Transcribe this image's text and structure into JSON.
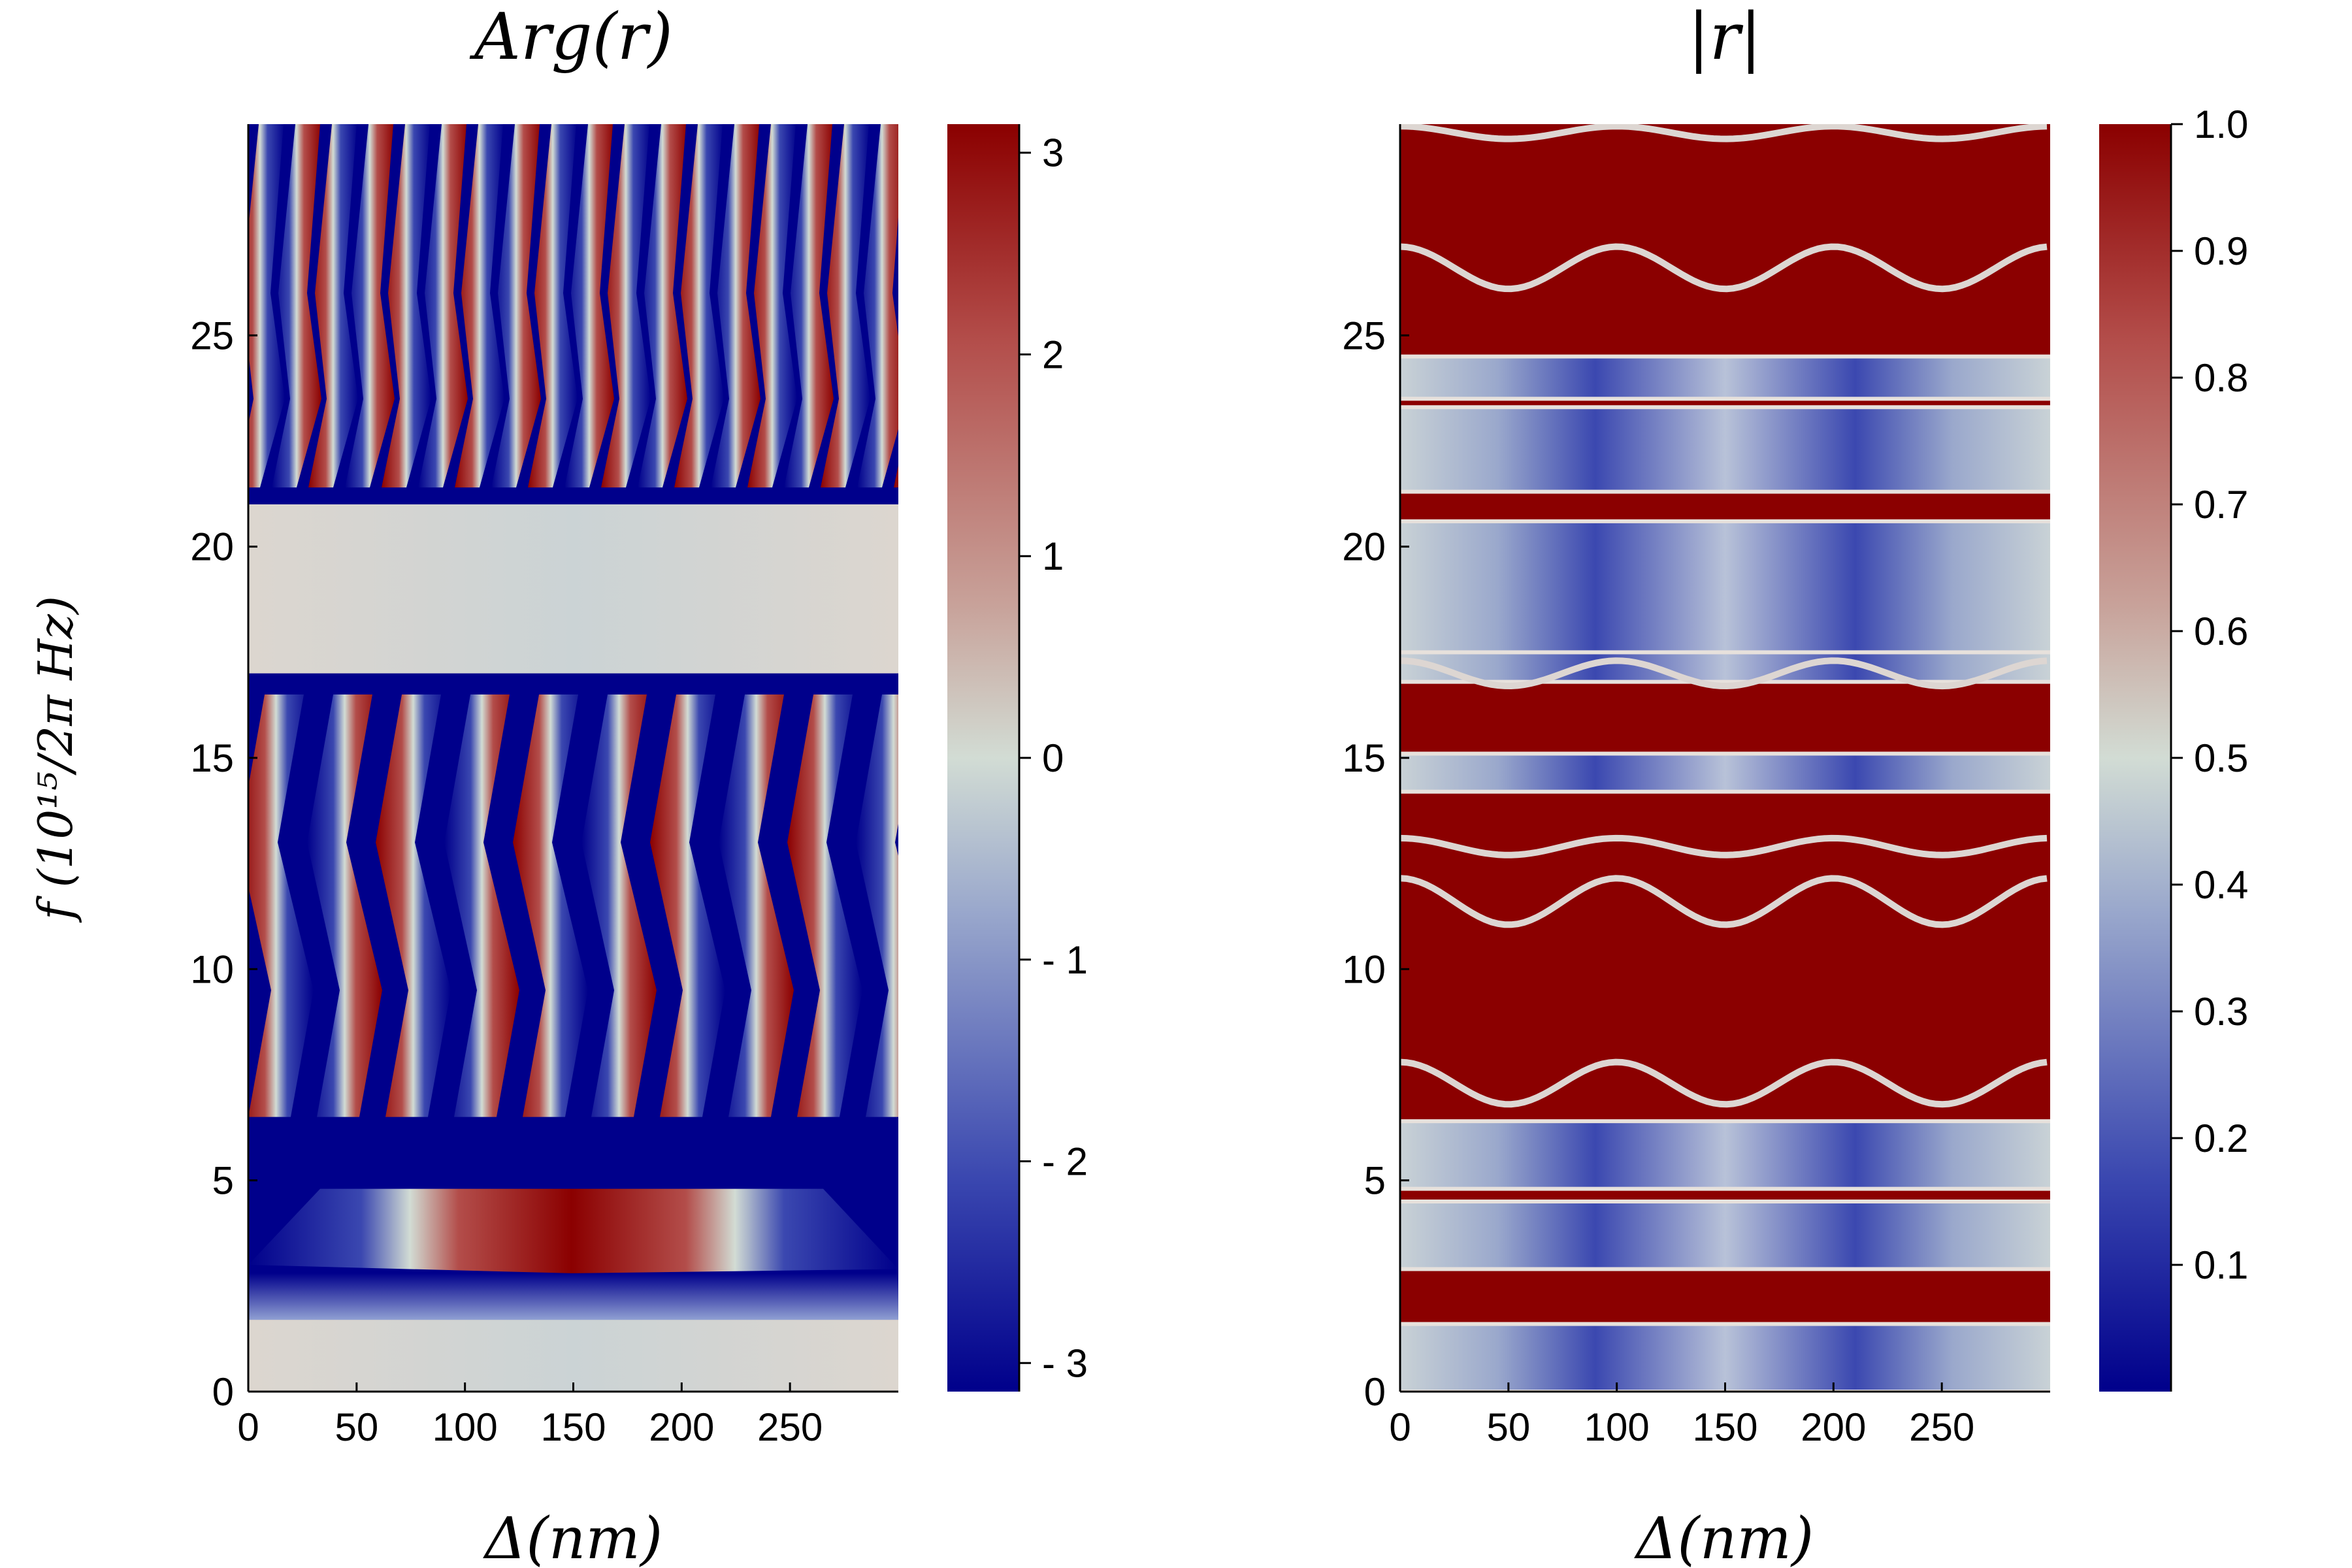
{
  "figure": {
    "ylabel": "f (10¹⁵/2π Hz)",
    "xlabel": "Δ(nm)"
  },
  "chart_data": [
    {
      "type": "heatmap",
      "title": "Arg(r)",
      "xlabel": "Δ(nm)",
      "ylabel": "f (10¹⁵/2π Hz)",
      "xlim": [
        0,
        300
      ],
      "ylim": [
        0,
        30
      ],
      "x_ticks": [
        0,
        50,
        100,
        150,
        200,
        250
      ],
      "y_ticks": [
        0,
        5,
        10,
        15,
        20,
        25
      ],
      "x_tick_labels": [
        "0",
        "50",
        "100",
        "150",
        "200",
        "250"
      ],
      "y_tick_labels": [
        "0",
        "5",
        "10",
        "15",
        "20",
        "25"
      ],
      "colorbar": {
        "range": [
          -3.1416,
          3.1416
        ],
        "ticks": [
          3,
          2,
          1,
          0,
          -1,
          -2,
          -3
        ],
        "tick_labels": [
          "3",
          "2",
          "1",
          "0",
          "- 1",
          "- 2",
          "- 3"
        ],
        "colors": [
          "#00008b",
          "#3b48b0",
          "#9aa8cc",
          "#d2dcd4",
          "#c8a29a",
          "#b34d4a",
          "#8b0000"
        ]
      },
      "bands": [
        {
          "f_range": [
            0,
            1.7
          ],
          "description": "near-zero phase"
        },
        {
          "f_range": [
            1.7,
            2.8
          ],
          "description": "negative phase"
        },
        {
          "f_range": [
            17,
            21
          ],
          "description": "near-zero phase band"
        }
      ]
    },
    {
      "type": "heatmap",
      "title": "|r|",
      "xlabel": "Δ(nm)",
      "ylabel": "f (10¹⁵/2π Hz)",
      "xlim": [
        0,
        300
      ],
      "ylim": [
        0,
        30
      ],
      "x_ticks": [
        0,
        50,
        100,
        150,
        200,
        250
      ],
      "y_ticks": [
        0,
        5,
        10,
        15,
        20,
        25
      ],
      "x_tick_labels": [
        "0",
        "50",
        "100",
        "150",
        "200",
        "250"
      ],
      "y_tick_labels": [
        "0",
        "5",
        "10",
        "15",
        "20",
        "25"
      ],
      "colorbar": {
        "range": [
          0,
          1.0
        ],
        "ticks": [
          1.0,
          0.9,
          0.8,
          0.7,
          0.6,
          0.5,
          0.4,
          0.3,
          0.2,
          0.1
        ],
        "tick_labels": [
          "1.0",
          "0.9",
          "0.8",
          "0.7",
          "0.6",
          "0.5",
          "0.4",
          "0.3",
          "0.2",
          "0.1"
        ],
        "colors": [
          "#00008b",
          "#3b48b0",
          "#9aa8cc",
          "#d2dcd4",
          "#c8a29a",
          "#b34d4a",
          "#8b0000"
        ]
      },
      "gap_bands": [
        {
          "f_range": [
            0,
            1.6
          ],
          "level": 0.3
        },
        {
          "f_range": [
            2.9,
            4.5
          ],
          "level": 0.35
        },
        {
          "f_range": [
            4.8,
            6.4
          ],
          "level": 0.45
        },
        {
          "f_range": [
            14.2,
            15.1
          ],
          "level": 0.4
        },
        {
          "f_range": [
            16.8,
            17.5
          ],
          "level": 0.5
        },
        {
          "f_range": [
            17.5,
            20.6
          ],
          "level": 0.35
        },
        {
          "f_range": [
            21.3,
            23.3
          ],
          "level": 0.45
        },
        {
          "f_range": [
            23.5,
            24.5
          ],
          "level": 0.45
        }
      ],
      "wavy_lines": [
        {
          "f": 11.6,
          "amplitude": 0.55
        },
        {
          "f": 7.3,
          "amplitude": 0.5
        },
        {
          "f": 12.9,
          "amplitude": 0.2
        },
        {
          "f": 17.0,
          "amplitude": 0.3
        },
        {
          "f": 26.6,
          "amplitude": 0.5
        },
        {
          "f": 29.8,
          "amplitude": 0.15
        }
      ]
    }
  ]
}
